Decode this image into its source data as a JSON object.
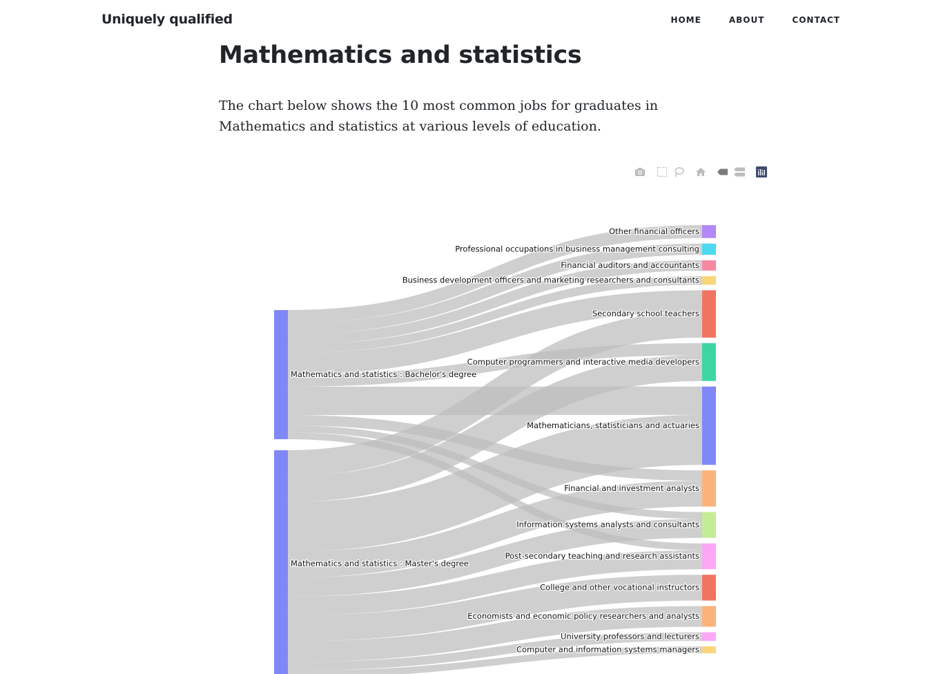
{
  "brand": "Uniquely qualified",
  "nav": {
    "home": "HOME",
    "about": "ABOUT",
    "contact": "CONTACT"
  },
  "page": {
    "title": "Mathematics and statistics",
    "intro": "The chart below shows the 10 most common jobs for graduates in Mathematics and statistics at various levels of education."
  },
  "modebar": {
    "icons": [
      "camera-icon",
      "box-select-icon",
      "lasso-select-icon",
      "home-icon",
      "hover-closest-icon",
      "hover-compare-icon",
      "plotly-logo-icon"
    ]
  },
  "chart_data": {
    "type": "sankey",
    "node_color": "#8088f7",
    "link_color": "#bdbdbd",
    "sources": [
      {
        "name": "Mathematics and statistics : Bachelor's degree",
        "color": "#8088f7"
      },
      {
        "name": "Mathematics and statistics : Master's degree",
        "color": "#8088f7"
      }
    ],
    "targets": [
      {
        "name": "Other financial officers",
        "color": "#b388f7"
      },
      {
        "name": "Professional occupations in business management consulting",
        "color": "#4dd9f0"
      },
      {
        "name": "Financial auditors and accountants",
        "color": "#f78aa3"
      },
      {
        "name": "Business development officers and marketing researchers and consultants",
        "color": "#f9d67a"
      },
      {
        "name": "Secondary school teachers",
        "color": "#f07560"
      },
      {
        "name": "Computer programmers and interactive media developers",
        "color": "#3dd6a3"
      },
      {
        "name": "Mathematicians, statisticians and actuaries",
        "color": "#8088f7"
      },
      {
        "name": "Financial and investment analysts",
        "color": "#fbb37a"
      },
      {
        "name": "Information systems analysts and consultants",
        "color": "#c4ec96"
      },
      {
        "name": "Post-secondary teaching and research assistants",
        "color": "#fca7f5"
      },
      {
        "name": "College and other vocational instructors",
        "color": "#f07560"
      },
      {
        "name": "Economists and economic policy researchers and analysts",
        "color": "#fbb37a"
      },
      {
        "name": "University professors and lecturers",
        "color": "#fca7f5"
      },
      {
        "name": "Computer and information systems managers",
        "color": "#f9d67a"
      }
    ],
    "links": [
      {
        "source": 0,
        "target": 0,
        "value": 15
      },
      {
        "source": 0,
        "target": 1,
        "value": 13
      },
      {
        "source": 0,
        "target": 2,
        "value": 12
      },
      {
        "source": 0,
        "target": 3,
        "value": 10
      },
      {
        "source": 0,
        "target": 4,
        "value": 25
      },
      {
        "source": 0,
        "target": 5,
        "value": 14
      },
      {
        "source": 0,
        "target": 6,
        "value": 33
      },
      {
        "source": 0,
        "target": 7,
        "value": 12
      },
      {
        "source": 0,
        "target": 8,
        "value": 8
      },
      {
        "source": 0,
        "target": 9,
        "value": 8
      },
      {
        "source": 1,
        "target": 4,
        "value": 30
      },
      {
        "source": 1,
        "target": 5,
        "value": 30
      },
      {
        "source": 1,
        "target": 6,
        "value": 58
      },
      {
        "source": 1,
        "target": 7,
        "value": 30
      },
      {
        "source": 1,
        "target": 8,
        "value": 22
      },
      {
        "source": 1,
        "target": 9,
        "value": 22
      },
      {
        "source": 1,
        "target": 10,
        "value": 30
      },
      {
        "source": 1,
        "target": 11,
        "value": 24
      },
      {
        "source": 1,
        "target": 12,
        "value": 10
      },
      {
        "source": 1,
        "target": 13,
        "value": 8
      }
    ]
  }
}
